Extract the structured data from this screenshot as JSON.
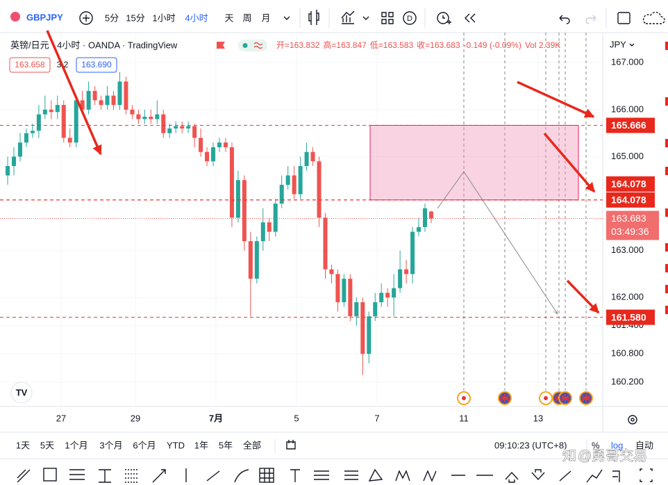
{
  "toolbar": {
    "symbol": "GBPJPY",
    "intervals": [
      "5分",
      "15分",
      "1小时",
      "4小时",
      "天",
      "周",
      "月"
    ],
    "badge": "D"
  },
  "legend": {
    "title": "英镑/日元 · 4小时 · OANDA · TradingView",
    "ohlc": [
      "开=163.832",
      "高=163.847",
      "低=163.583",
      "收=163.683",
      "-0.149 (-0.09%)",
      "Vol 2.39K"
    ],
    "sell": "163.658",
    "spread": "3.2",
    "buy": "163.690"
  },
  "chart_data": {
    "type": "candlestick",
    "open": [
      164.6,
      164.8,
      165.0,
      165.3,
      165.5,
      165.55,
      165.9,
      166.0,
      165.95,
      166.1,
      165.4,
      165.3,
      166.2,
      166.0,
      166.4,
      166.2,
      166.1,
      166.3,
      166.1,
      166.6,
      166.0,
      165.9,
      165.8,
      165.85,
      165.8,
      165.9,
      165.5,
      165.6,
      165.65,
      165.6,
      165.65,
      165.4,
      165.1,
      164.9,
      165.2,
      165.3,
      165.2,
      163.7,
      164.5,
      163.2,
      162.4,
      163.2,
      163.6,
      163.4,
      164.0,
      164.4,
      164.6,
      164.2,
      164.8,
      165.1,
      164.9,
      163.7,
      162.6,
      162.5,
      161.9,
      162.4,
      161.6,
      161.9,
      160.8,
      161.6,
      161.9,
      162.1,
      162.0,
      162.2,
      162.6,
      162.5,
      163.4,
      163.5,
      163.832
    ],
    "high": [
      165.0,
      165.2,
      165.5,
      165.6,
      165.7,
      166.1,
      166.3,
      166.2,
      166.3,
      166.2,
      165.6,
      166.3,
      166.4,
      166.6,
      166.5,
      166.3,
      166.5,
      166.4,
      166.8,
      166.7,
      166.1,
      166.0,
      166.0,
      166.0,
      166.2,
      166.0,
      165.7,
      165.75,
      165.75,
      165.75,
      165.7,
      165.6,
      165.2,
      165.3,
      165.4,
      165.4,
      165.3,
      164.7,
      164.6,
      163.4,
      163.3,
      163.9,
      163.7,
      164.1,
      164.6,
      164.8,
      164.8,
      165.0,
      165.3,
      165.2,
      165.0,
      163.8,
      162.7,
      162.6,
      162.5,
      162.5,
      162.0,
      162.0,
      161.7,
      162.1,
      162.3,
      162.2,
      162.5,
      163.0,
      162.8,
      163.5,
      163.7,
      164.0,
      163.847
    ],
    "low": [
      164.4,
      164.6,
      164.9,
      165.2,
      165.4,
      165.4,
      165.8,
      165.8,
      165.8,
      165.3,
      165.2,
      165.2,
      165.9,
      165.9,
      166.1,
      166.0,
      166.0,
      166.0,
      166.0,
      165.9,
      165.8,
      165.7,
      165.7,
      165.7,
      165.7,
      165.4,
      165.4,
      165.5,
      165.5,
      165.5,
      165.2,
      165.0,
      164.8,
      164.8,
      165.1,
      165.1,
      163.5,
      163.6,
      163.0,
      161.6,
      162.3,
      163.0,
      163.2,
      163.3,
      163.9,
      164.3,
      164.1,
      164.1,
      164.7,
      164.8,
      163.5,
      162.4,
      162.3,
      161.7,
      161.8,
      161.5,
      161.4,
      160.35,
      160.6,
      161.5,
      161.8,
      161.8,
      161.6,
      162.1,
      162.3,
      162.3,
      163.3,
      163.4,
      163.583
    ],
    "close": [
      164.8,
      165.0,
      165.3,
      165.5,
      165.55,
      165.9,
      166.0,
      165.95,
      166.1,
      165.4,
      165.3,
      166.2,
      166.0,
      166.4,
      166.2,
      166.1,
      166.3,
      166.1,
      166.6,
      166.0,
      165.9,
      165.8,
      165.85,
      165.8,
      165.9,
      165.5,
      165.6,
      165.65,
      165.6,
      165.65,
      165.4,
      165.1,
      164.9,
      165.2,
      165.3,
      165.2,
      163.7,
      164.5,
      163.2,
      162.4,
      163.2,
      163.6,
      163.4,
      164.0,
      164.4,
      164.6,
      164.2,
      164.8,
      165.1,
      164.9,
      163.7,
      162.6,
      162.5,
      161.9,
      162.4,
      161.6,
      161.9,
      160.8,
      161.6,
      161.9,
      162.1,
      162.0,
      162.2,
      162.6,
      162.5,
      163.4,
      163.5,
      163.9,
      163.683
    ],
    "up_color": "#26a69a",
    "down_color": "#ef5350",
    "ylim": [
      159.68,
      167.64
    ],
    "yticks": [
      {
        "value": 167,
        "label": "167.000"
      },
      {
        "value": 166,
        "label": "166.000"
      },
      {
        "value": 165,
        "label": "165.000"
      },
      {
        "value": 163,
        "label": "163.000"
      },
      {
        "value": 162,
        "label": "162.000"
      },
      {
        "value": 161.4,
        "label": "161.400"
      },
      {
        "value": 160.8,
        "label": "160.800"
      },
      {
        "value": 160.2,
        "label": "160.200"
      }
    ],
    "xlim": [
      -1.23,
      95.54
    ],
    "xticks": [
      {
        "value": 8.58,
        "label": "27"
      },
      {
        "value": 20.51,
        "label": "29"
      },
      {
        "value": 33.44,
        "label": "7月"
      },
      {
        "value": 46.38,
        "label": "5"
      },
      {
        "value": 59.31,
        "label": "7"
      },
      {
        "value": 73.24,
        "label": "11"
      },
      {
        "value": 85.17,
        "label": "13"
      }
    ],
    "y_axis_label": "JPY",
    "levels": [
      165.666,
      164.078,
      164.078,
      {
        "value": 161.58,
        "label": "161.580"
      }
    ],
    "countdown": "03:49:36"
  },
  "bottom_bar": {
    "ranges": [
      "1天",
      "5天",
      "1个月",
      "3个月",
      "6个月",
      "YTD",
      "1年",
      "5年",
      "全部"
    ],
    "clock": "09:10:23 (UTC+8)",
    "percent": "%",
    "log": "log",
    "auto": "自动"
  },
  "watermark": "@勇哥交易"
}
